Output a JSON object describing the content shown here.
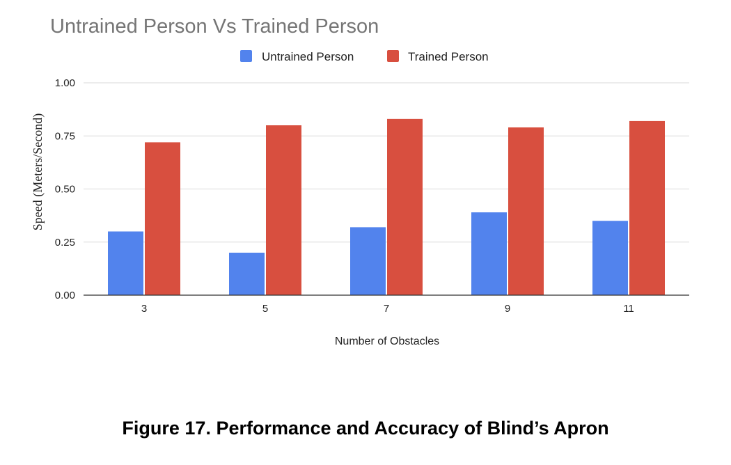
{
  "chart_data": {
    "type": "bar",
    "title": "Untrained Person Vs Trained Person",
    "xlabel": "Number of Obstacles",
    "ylabel": "Speed (Meters/Second)",
    "categories": [
      "3",
      "5",
      "7",
      "9",
      "11"
    ],
    "series": [
      {
        "name": "Untrained Person",
        "color": "#5283ed",
        "values": [
          0.3,
          0.2,
          0.32,
          0.39,
          0.35
        ]
      },
      {
        "name": "Trained Person",
        "color": "#d84f3f",
        "values": [
          0.72,
          0.8,
          0.83,
          0.79,
          0.82
        ]
      }
    ],
    "ylim": [
      0,
      1
    ],
    "yticks": [
      "0.00",
      "0.25",
      "0.50",
      "0.75",
      "1.00"
    ],
    "grid": true,
    "legend_position": "top-center"
  },
  "caption": "Figure 17. Performance and Accuracy of Blind’s Apron"
}
